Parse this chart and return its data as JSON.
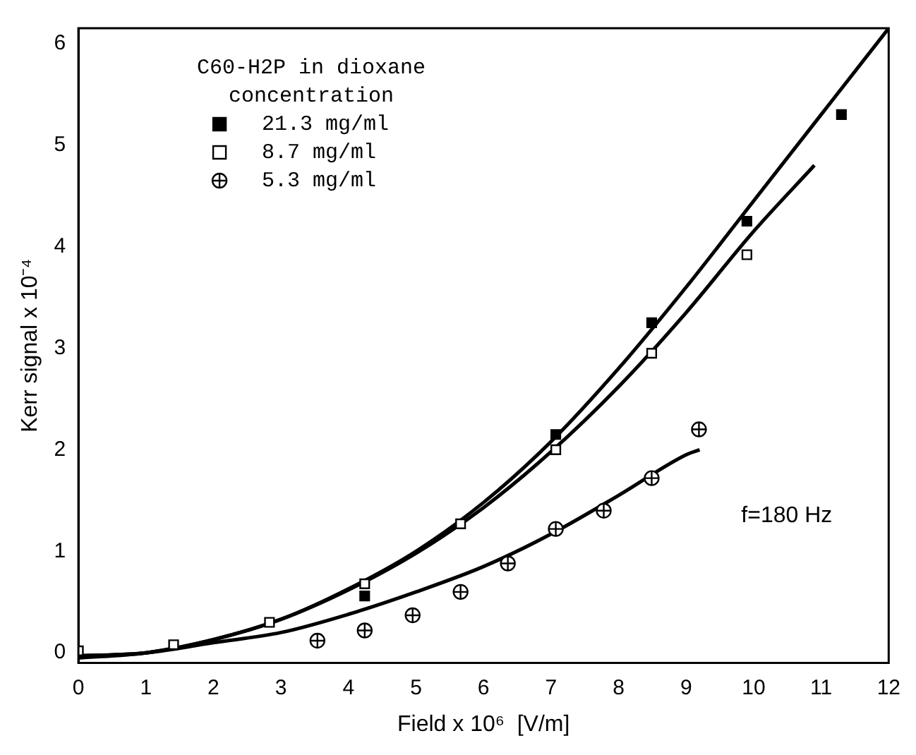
{
  "chart_data": {
    "type": "scatter",
    "xlabel": "Field x 10⁶  [V/m]",
    "ylabel": "Kerr signal x 10⁻⁴",
    "legend_title": "C60-H2P in dioxane concentration",
    "legend": "top left",
    "grid": false,
    "xlim": [
      0,
      12
    ],
    "ylim": [
      -0.1,
      6.15
    ],
    "xticks": [
      0,
      1,
      2,
      3,
      4,
      5,
      6,
      7,
      8,
      9,
      10,
      11,
      12
    ],
    "yticks": [
      0,
      1,
      2,
      3,
      4,
      5,
      6
    ],
    "annotations": [
      "f=180 Hz"
    ],
    "series": [
      {
        "name": "21.3 mg/ml",
        "color": "#000000",
        "marker": "square",
        "x": [
          4.24,
          7.07,
          8.49,
          9.9,
          11.3
        ],
        "values": [
          0.56,
          2.15,
          3.25,
          4.25,
          5.3
        ]
      },
      {
        "name": "8.7 mg/ml",
        "color": "#000000",
        "marker": "square",
        "x": [
          0,
          1.41,
          2.83,
          4.24,
          5.66,
          7.07,
          8.49,
          9.9
        ],
        "values": [
          0.02,
          0.08,
          0.3,
          0.68,
          1.27,
          2.0,
          2.95,
          3.92
        ]
      },
      {
        "name": "5.3 mg/ml",
        "color": "#000000",
        "marker": "circle",
        "x": [
          3.54,
          4.24,
          4.95,
          5.66,
          6.36,
          7.07,
          7.78,
          8.49,
          9.19
        ],
        "values": [
          0.12,
          0.22,
          0.37,
          0.6,
          0.88,
          1.22,
          1.4,
          1.72,
          2.2
        ]
      },
      {
        "type": "line",
        "color": "#000000",
        "marker": "none",
        "x": [
          0,
          1,
          2,
          3,
          4,
          5,
          6,
          7,
          8,
          9,
          10,
          11,
          12
        ],
        "values": [
          -0.05,
          0.0,
          0.13,
          0.33,
          0.63,
          1.0,
          1.48,
          2.08,
          2.8,
          3.6,
          4.45,
          5.3,
          6.15
        ]
      },
      {
        "type": "line",
        "color": "#000000",
        "marker": "none",
        "x": [
          0,
          1,
          2,
          3,
          4,
          5,
          6,
          7,
          8,
          9,
          10,
          10.9
        ],
        "values": [
          -0.03,
          0.0,
          0.13,
          0.33,
          0.62,
          0.98,
          1.43,
          1.98,
          2.62,
          3.35,
          4.15,
          4.8
        ]
      },
      {
        "type": "line",
        "color": "#000000",
        "marker": "none",
        "x": [
          0,
          1,
          2,
          3,
          4,
          5,
          6,
          7,
          8,
          9,
          9.2
        ],
        "values": [
          -0.03,
          0.0,
          0.1,
          0.2,
          0.38,
          0.6,
          0.85,
          1.17,
          1.55,
          1.95,
          2.0
        ]
      }
    ]
  }
}
